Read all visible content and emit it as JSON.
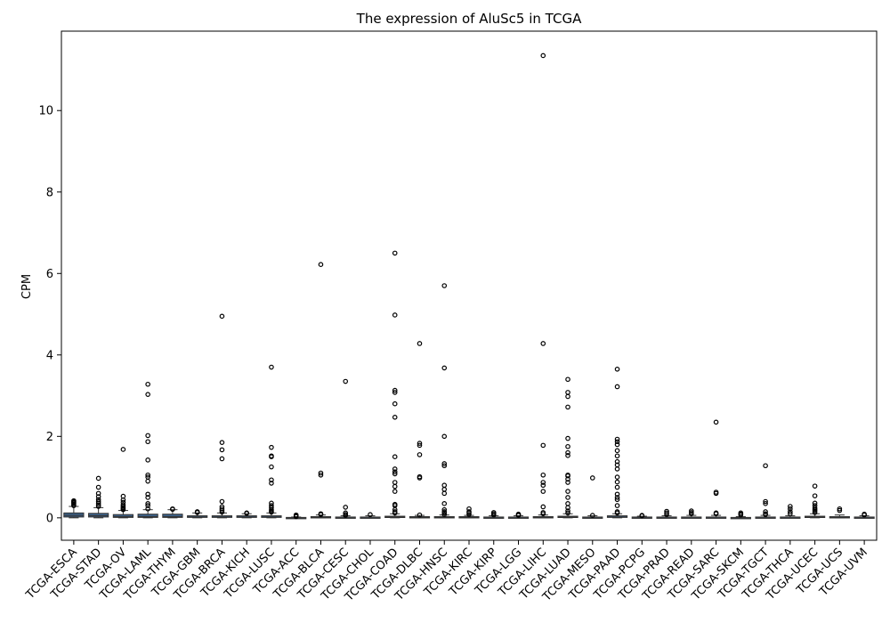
{
  "chart_data": {
    "type": "box",
    "title": "The expression of AluSc5 in TCGA",
    "xlabel": "",
    "ylabel": "CPM",
    "ylim": [
      -0.55,
      11.95
    ],
    "yticks": [
      0,
      2,
      4,
      6,
      8,
      10
    ],
    "grid": false,
    "legend": "none",
    "box_color": "#3b5f86",
    "categories": [
      "TCGA-ESCA",
      "TCGA-STAD",
      "TCGA-OV",
      "TCGA-LAML",
      "TCGA-THYM",
      "TCGA-GBM",
      "TCGA-BRCA",
      "TCGA-KICH",
      "TCGA-LUSC",
      "TCGA-ACC",
      "TCGA-BLCA",
      "TCGA-CESC",
      "TCGA-CHOL",
      "TCGA-COAD",
      "TCGA-DLBC",
      "TCGA-HNSC",
      "TCGA-KIRC",
      "TCGA-KIRP",
      "TCGA-LGG",
      "TCGA-LIHC",
      "TCGA-LUAD",
      "TCGA-MESO",
      "TCGA-PAAD",
      "TCGA-PCPG",
      "TCGA-PRAD",
      "TCGA-READ",
      "TCGA-SARC",
      "TCGA-SKCM",
      "TCGA-TGCT",
      "TCGA-THCA",
      "TCGA-UCEC",
      "TCGA-UCS",
      "TCGA-UVM"
    ],
    "boxes": [
      {
        "min": 0.0,
        "q1": 0.02,
        "median": 0.06,
        "q3": 0.12,
        "max": 0.28
      },
      {
        "min": 0.0,
        "q1": 0.02,
        "median": 0.05,
        "q3": 0.11,
        "max": 0.25
      },
      {
        "min": 0.0,
        "q1": 0.01,
        "median": 0.03,
        "q3": 0.08,
        "max": 0.18
      },
      {
        "min": 0.0,
        "q1": 0.01,
        "median": 0.03,
        "q3": 0.09,
        "max": 0.2
      },
      {
        "min": 0.0,
        "q1": 0.01,
        "median": 0.03,
        "q3": 0.09,
        "max": 0.2
      },
      {
        "min": 0.0,
        "q1": 0.01,
        "median": 0.02,
        "q3": 0.05,
        "max": 0.12
      },
      {
        "min": 0.0,
        "q1": 0.01,
        "median": 0.02,
        "q3": 0.05,
        "max": 0.12
      },
      {
        "min": 0.0,
        "q1": 0.01,
        "median": 0.02,
        "q3": 0.05,
        "max": 0.1
      },
      {
        "min": 0.0,
        "q1": 0.01,
        "median": 0.02,
        "q3": 0.05,
        "max": 0.12
      },
      {
        "min": 0.0,
        "q1": 0.0,
        "median": 0.0,
        "q3": 0.01,
        "max": 0.02
      },
      {
        "min": 0.0,
        "q1": 0.0,
        "median": 0.01,
        "q3": 0.03,
        "max": 0.07
      },
      {
        "min": 0.0,
        "q1": 0.0,
        "median": 0.01,
        "q3": 0.02,
        "max": 0.05
      },
      {
        "min": 0.0,
        "q1": 0.0,
        "median": 0.01,
        "q3": 0.02,
        "max": 0.05
      },
      {
        "min": 0.0,
        "q1": 0.01,
        "median": 0.02,
        "q3": 0.04,
        "max": 0.1
      },
      {
        "min": 0.0,
        "q1": 0.0,
        "median": 0.01,
        "q3": 0.03,
        "max": 0.06
      },
      {
        "min": 0.0,
        "q1": 0.0,
        "median": 0.01,
        "q3": 0.03,
        "max": 0.07
      },
      {
        "min": 0.0,
        "q1": 0.0,
        "median": 0.01,
        "q3": 0.03,
        "max": 0.06
      },
      {
        "min": 0.0,
        "q1": 0.0,
        "median": 0.01,
        "q3": 0.02,
        "max": 0.05
      },
      {
        "min": 0.0,
        "q1": 0.0,
        "median": 0.01,
        "q3": 0.02,
        "max": 0.05
      },
      {
        "min": 0.0,
        "q1": 0.0,
        "median": 0.01,
        "q3": 0.03,
        "max": 0.07
      },
      {
        "min": 0.0,
        "q1": 0.01,
        "median": 0.02,
        "q3": 0.04,
        "max": 0.1
      },
      {
        "min": 0.0,
        "q1": 0.0,
        "median": 0.01,
        "q3": 0.02,
        "max": 0.05
      },
      {
        "min": 0.0,
        "q1": 0.01,
        "median": 0.02,
        "q3": 0.05,
        "max": 0.1
      },
      {
        "min": 0.0,
        "q1": 0.0,
        "median": 0.01,
        "q3": 0.02,
        "max": 0.04
      },
      {
        "min": 0.0,
        "q1": 0.0,
        "median": 0.01,
        "q3": 0.02,
        "max": 0.05
      },
      {
        "min": 0.0,
        "q1": 0.0,
        "median": 0.01,
        "q3": 0.02,
        "max": 0.06
      },
      {
        "min": 0.0,
        "q1": 0.0,
        "median": 0.01,
        "q3": 0.02,
        "max": 0.06
      },
      {
        "min": 0.0,
        "q1": 0.0,
        "median": 0.0,
        "q3": 0.01,
        "max": 0.03
      },
      {
        "min": 0.0,
        "q1": 0.0,
        "median": 0.01,
        "q3": 0.02,
        "max": 0.06
      },
      {
        "min": 0.0,
        "q1": 0.0,
        "median": 0.01,
        "q3": 0.02,
        "max": 0.05
      },
      {
        "min": 0.0,
        "q1": 0.01,
        "median": 0.02,
        "q3": 0.04,
        "max": 0.1
      },
      {
        "min": 0.0,
        "q1": 0.0,
        "median": 0.01,
        "q3": 0.03,
        "max": 0.07
      },
      {
        "min": 0.0,
        "q1": 0.0,
        "median": 0.01,
        "q3": 0.02,
        "max": 0.05
      }
    ],
    "outliers": [
      [
        0.3,
        0.33,
        0.36,
        0.38,
        0.4,
        0.42
      ],
      [
        0.28,
        0.32,
        0.36,
        0.4,
        0.45,
        0.52,
        0.6,
        0.75,
        0.97
      ],
      [
        0.2,
        0.22,
        0.25,
        0.28,
        0.32,
        0.38,
        0.44,
        0.53,
        1.68
      ],
      [
        0.22,
        0.3,
        0.35,
        0.5,
        0.58,
        0.9,
        1.0,
        1.05,
        1.42,
        1.87,
        2.02,
        3.03,
        3.28
      ],
      [
        0.21,
        0.22
      ],
      [
        0.13,
        0.15
      ],
      [
        0.14,
        0.18,
        0.22,
        0.27,
        0.4,
        1.45,
        1.67,
        1.85,
        4.95
      ],
      [
        0.11,
        0.12
      ],
      [
        0.14,
        0.17,
        0.2,
        0.25,
        0.3,
        0.36,
        0.85,
        0.93,
        1.25,
        1.5,
        1.52,
        1.73,
        3.7
      ],
      [
        0.03,
        0.05,
        0.07
      ],
      [
        0.08,
        0.1,
        1.05,
        1.1,
        6.22
      ],
      [
        0.06,
        0.08,
        0.12,
        0.26,
        3.35
      ],
      [
        0.08
      ],
      [
        0.12,
        0.15,
        0.2,
        0.3,
        0.33,
        0.65,
        0.77,
        0.87,
        1.08,
        1.13,
        1.2,
        1.5,
        2.47,
        2.8,
        3.08,
        3.13,
        4.98,
        6.5
      ],
      [
        0.07,
        0.98,
        1.01,
        1.55,
        1.78,
        1.83,
        4.28
      ],
      [
        0.08,
        0.12,
        0.15,
        0.2,
        0.35,
        0.6,
        0.7,
        0.8,
        1.28,
        1.33,
        2.0,
        3.68,
        5.7
      ],
      [
        0.08,
        0.12,
        0.15,
        0.22
      ],
      [
        0.07,
        0.1,
        0.13
      ],
      [
        0.06,
        0.08,
        0.09
      ],
      [
        0.1,
        0.13,
        0.27,
        0.65,
        0.8,
        0.87,
        1.05,
        1.78,
        4.28,
        11.35
      ],
      [
        0.12,
        0.17,
        0.25,
        0.35,
        0.5,
        0.65,
        0.87,
        0.95,
        1.03,
        1.05,
        1.53,
        1.6,
        1.75,
        1.95,
        2.72,
        2.98,
        3.08,
        3.4
      ],
      [
        0.06,
        0.98
      ],
      [
        0.12,
        0.15,
        0.3,
        0.45,
        0.5,
        0.58,
        0.75,
        0.88,
        1.0,
        1.2,
        1.3,
        1.38,
        1.52,
        1.65,
        1.8,
        1.87,
        1.93,
        3.22,
        3.65
      ],
      [
        0.05,
        0.06
      ],
      [
        0.08,
        0.12,
        0.16
      ],
      [
        0.1,
        0.13,
        0.17
      ],
      [
        0.1,
        0.12,
        0.6,
        0.63,
        2.35
      ],
      [
        0.07,
        0.09,
        0.12
      ],
      [
        0.08,
        0.1,
        0.15,
        0.35,
        0.4,
        1.28
      ],
      [
        0.1,
        0.15,
        0.22,
        0.28
      ],
      [
        0.13,
        0.17,
        0.2,
        0.24,
        0.3,
        0.36,
        0.54,
        0.78
      ],
      [
        0.18,
        0.22
      ],
      [
        0.07,
        0.09
      ]
    ]
  }
}
